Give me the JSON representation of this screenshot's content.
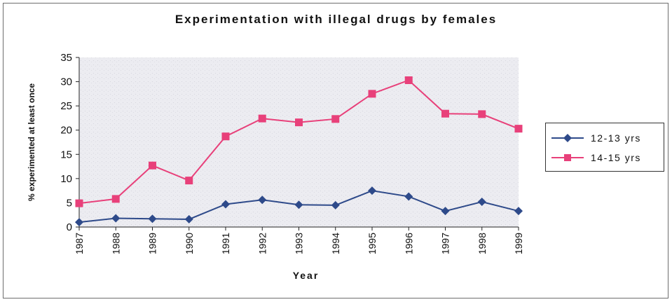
{
  "chart_data": {
    "type": "line",
    "title": "Experimentation with illegal drugs by females",
    "xlabel": "Year",
    "ylabel": "% experimented at least once",
    "categories": [
      "1987",
      "1988",
      "1989",
      "1990",
      "1991",
      "1992",
      "1993",
      "1994",
      "1995",
      "1996",
      "1997",
      "1998",
      "1999"
    ],
    "ylim": [
      0,
      35
    ],
    "yticks": [
      0,
      5,
      10,
      15,
      20,
      25,
      30,
      35
    ],
    "grid": false,
    "legend_position": "right",
    "series": [
      {
        "name": "12-13 yrs",
        "color": "#2e4a8a",
        "marker": "diamond",
        "values": [
          1.0,
          1.8,
          1.7,
          1.6,
          4.7,
          5.6,
          4.6,
          4.5,
          7.5,
          6.3,
          3.3,
          5.2,
          3.3
        ]
      },
      {
        "name": "14-15 yrs",
        "color": "#e8407a",
        "marker": "square",
        "values": [
          4.9,
          5.8,
          12.7,
          9.6,
          18.7,
          22.4,
          21.6,
          22.3,
          27.5,
          30.3,
          23.4,
          23.3,
          20.3
        ]
      }
    ]
  },
  "legend": {
    "items": [
      "12-13 yrs",
      "14-15 yrs"
    ]
  }
}
